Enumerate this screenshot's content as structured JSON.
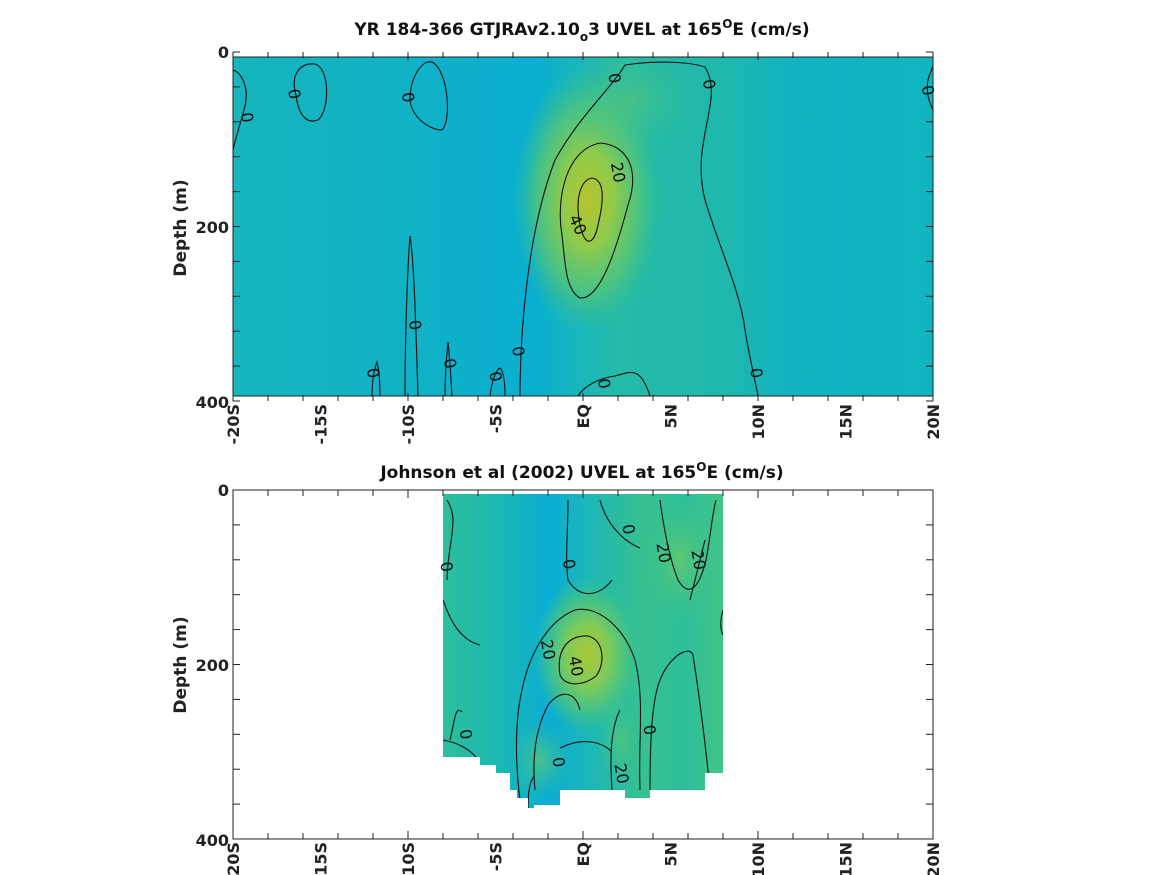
{
  "chart_data": [
    {
      "type": "heatmap",
      "title_parts": [
        "YR 184-366 GTJRAv2.10",
        "o",
        "3 UVEL at 165",
        "O",
        "E (cm/s)"
      ],
      "ylabel": "Depth (m)",
      "x_ticks": [
        "-20S",
        "-15S",
        "-10S",
        "-5S",
        "EQ",
        "5N",
        "10N",
        "15N",
        "20N"
      ],
      "y_ticks": [
        "0",
        "200",
        "400"
      ],
      "xlim": [
        -20,
        20
      ],
      "ylim": [
        0,
        400
      ],
      "colormap": [
        "#0eb3c8",
        "#1bb9b4",
        "#3cc192",
        "#7ccb5c",
        "#b4c634"
      ],
      "contour_labels": [
        {
          "text": "0",
          "lat": -19.2,
          "depth": 75
        },
        {
          "text": "0",
          "lat": -16.5,
          "depth": 48
        },
        {
          "text": "0",
          "lat": -10.0,
          "depth": 52
        },
        {
          "text": "0",
          "lat": 1.8,
          "depth": 30
        },
        {
          "text": "0",
          "lat": 7.2,
          "depth": 37
        },
        {
          "text": "0",
          "lat": 19.7,
          "depth": 44
        },
        {
          "text": "20",
          "lat": 2.0,
          "depth": 138
        },
        {
          "text": "40",
          "lat": -0.3,
          "depth": 198
        },
        {
          "text": "0",
          "lat": -9.6,
          "depth": 313
        },
        {
          "text": "0",
          "lat": -12.0,
          "depth": 368
        },
        {
          "text": "0",
          "lat": -7.6,
          "depth": 357
        },
        {
          "text": "0",
          "lat": -5.0,
          "depth": 372
        },
        {
          "text": "0",
          "lat": -3.7,
          "depth": 343
        },
        {
          "text": "0",
          "lat": 1.2,
          "depth": 380
        },
        {
          "text": "0",
          "lat": 9.9,
          "depth": 368
        }
      ]
    },
    {
      "type": "heatmap",
      "title_parts": [
        "Johnson et al (2002) UVEL at 165",
        "O",
        "E (cm/s)"
      ],
      "ylabel": "Depth (m)",
      "x_ticks": [
        "-20S",
        "-15S",
        "-10S",
        "-5S",
        "EQ",
        "5N",
        "10N",
        "15N",
        "20N"
      ],
      "y_ticks": [
        "0",
        "200",
        "400"
      ],
      "xlim": [
        -20,
        20
      ],
      "ylim": [
        0,
        400
      ],
      "data_extent_lat": [
        -8,
        8
      ],
      "colormap": [
        "#0eb3c8",
        "#1bb9b4",
        "#3cc192",
        "#7ccb5c",
        "#b4c634"
      ],
      "contour_labels": [
        {
          "text": "0",
          "lat": -7.8,
          "depth": 88
        },
        {
          "text": "0",
          "lat": -0.8,
          "depth": 85
        },
        {
          "text": "0",
          "lat": 2.6,
          "depth": 45
        },
        {
          "text": "20",
          "lat": 4.6,
          "depth": 72
        },
        {
          "text": "20",
          "lat": 6.6,
          "depth": 80
        },
        {
          "text": "20",
          "lat": -2.0,
          "depth": 183
        },
        {
          "text": "40",
          "lat": -0.4,
          "depth": 202
        },
        {
          "text": "0",
          "lat": -6.7,
          "depth": 280
        },
        {
          "text": "0",
          "lat": 3.8,
          "depth": 275
        },
        {
          "text": "0",
          "lat": -1.4,
          "depth": 312
        },
        {
          "text": "20",
          "lat": 2.2,
          "depth": 325
        }
      ]
    }
  ]
}
